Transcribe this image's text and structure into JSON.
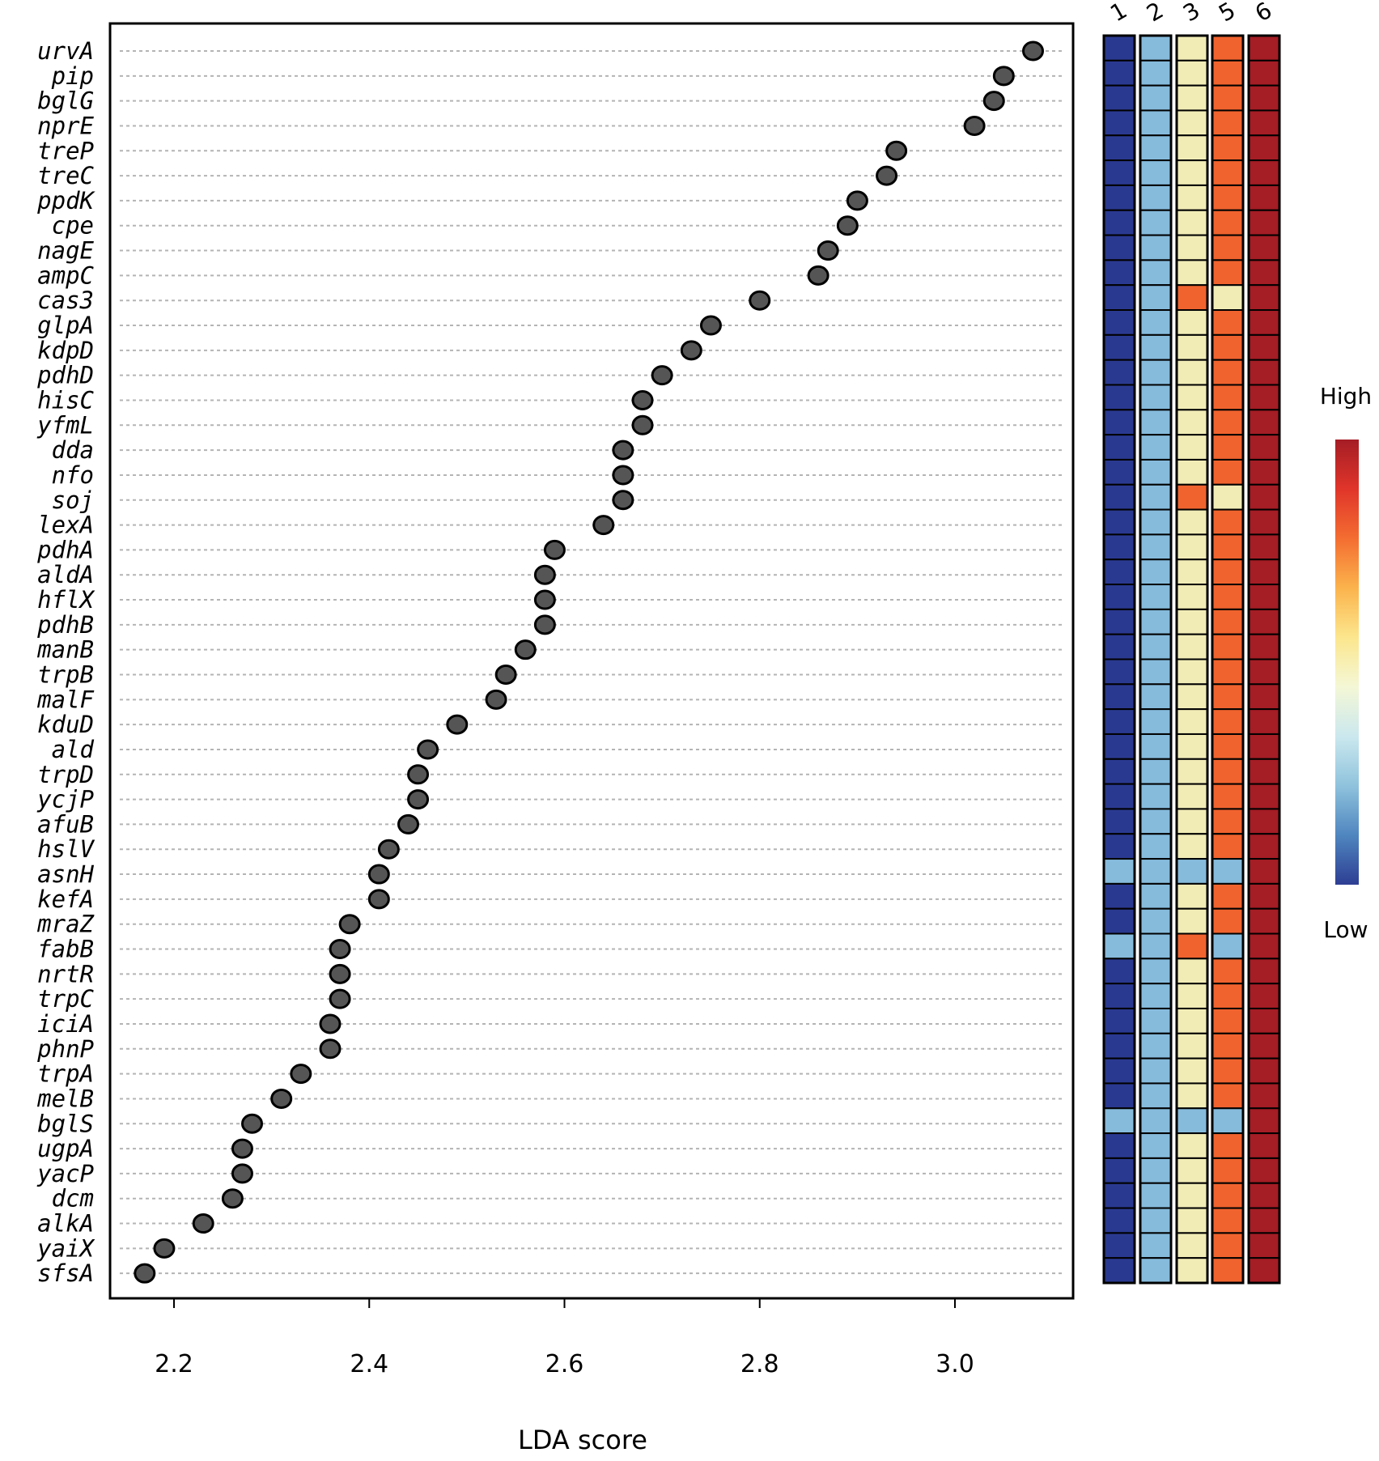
{
  "chart_data": {
    "type": "scatter",
    "xlabel": "LDA score",
    "xlim": [
      2.13,
      3.12
    ],
    "xticks": [
      2.2,
      2.4,
      2.6,
      2.8,
      3.0
    ],
    "xtick_labels": [
      "2.2",
      "2.4",
      "2.6",
      "2.8",
      "3.0"
    ],
    "genes": [
      "urvA",
      "pip",
      "bglG",
      "nprE",
      "treP",
      "treC",
      "ppdK",
      "cpe",
      "nagE",
      "ampC",
      "cas3",
      "glpA",
      "kdpD",
      "pdhD",
      "hisC",
      "yfmL",
      "dda",
      "nfo",
      "soj",
      "lexA",
      "pdhA",
      "aldA",
      "hflX",
      "pdhB",
      "manB",
      "trpB",
      "malF",
      "kduD",
      "ald",
      "trpD",
      "ycjP",
      "afuB",
      "hslV",
      "asnH",
      "kefA",
      "mraZ",
      "fabB",
      "nrtR",
      "trpC",
      "iciA",
      "phnP",
      "trpA",
      "melB",
      "bglS",
      "ugpA",
      "yacP",
      "dcm",
      "alkA",
      "yaiX",
      "sfsA"
    ],
    "lda_scores": [
      3.08,
      3.05,
      3.04,
      3.02,
      2.94,
      2.93,
      2.9,
      2.89,
      2.87,
      2.86,
      2.8,
      2.75,
      2.73,
      2.7,
      2.68,
      2.68,
      2.66,
      2.66,
      2.66,
      2.64,
      2.59,
      2.58,
      2.58,
      2.58,
      2.56,
      2.54,
      2.53,
      2.49,
      2.46,
      2.45,
      2.45,
      2.44,
      2.42,
      2.41,
      2.41,
      2.38,
      2.37,
      2.37,
      2.37,
      2.36,
      2.36,
      2.33,
      2.31,
      2.28,
      2.27,
      2.27,
      2.26,
      2.23,
      2.19,
      2.17
    ],
    "heatmap": {
      "columns": [
        "1",
        "2",
        "3",
        "5",
        "6"
      ],
      "levels": {
        "1": [
          "low",
          "low",
          "low",
          "low",
          "low",
          "low",
          "low",
          "low",
          "low",
          "low",
          "low",
          "low",
          "low",
          "low",
          "low",
          "low",
          "low",
          "low",
          "low",
          "low",
          "low",
          "low",
          "low",
          "low",
          "low",
          "low",
          "low",
          "low",
          "low",
          "low",
          "low",
          "low",
          "low",
          "midlow",
          "low",
          "low",
          "midlow",
          "low",
          "low",
          "low",
          "low",
          "low",
          "low",
          "midlow",
          "low",
          "low",
          "low",
          "low",
          "low",
          "low"
        ],
        "2": [
          "midlow",
          "midlow",
          "midlow",
          "midlow",
          "midlow",
          "midlow",
          "midlow",
          "midlow",
          "midlow",
          "midlow",
          "midlow",
          "midlow",
          "midlow",
          "midlow",
          "midlow",
          "midlow",
          "midlow",
          "midlow",
          "midlow",
          "midlow",
          "midlow",
          "midlow",
          "midlow",
          "midlow",
          "midlow",
          "midlow",
          "midlow",
          "midlow",
          "midlow",
          "midlow",
          "midlow",
          "midlow",
          "midlow",
          "midlow",
          "midlow",
          "midlow",
          "midlow",
          "midlow",
          "midlow",
          "midlow",
          "midlow",
          "midlow",
          "midlow",
          "midlow",
          "midlow",
          "midlow",
          "midlow",
          "midlow",
          "midlow",
          "midlow"
        ],
        "3": [
          "mid",
          "mid",
          "mid",
          "mid",
          "mid",
          "mid",
          "mid",
          "mid",
          "mid",
          "mid",
          "midhigh",
          "mid",
          "mid",
          "mid",
          "mid",
          "mid",
          "mid",
          "mid",
          "midhigh",
          "mid",
          "mid",
          "mid",
          "mid",
          "mid",
          "mid",
          "mid",
          "mid",
          "mid",
          "mid",
          "mid",
          "mid",
          "mid",
          "mid",
          "midlow",
          "mid",
          "mid",
          "midhigh",
          "mid",
          "mid",
          "mid",
          "mid",
          "mid",
          "mid",
          "midlow",
          "mid",
          "mid",
          "mid",
          "mid",
          "mid",
          "mid"
        ],
        "5": [
          "midhigh",
          "midhigh",
          "midhigh",
          "midhigh",
          "midhigh",
          "midhigh",
          "midhigh",
          "midhigh",
          "midhigh",
          "midhigh",
          "mid",
          "midhigh",
          "midhigh",
          "midhigh",
          "midhigh",
          "midhigh",
          "midhigh",
          "midhigh",
          "mid",
          "midhigh",
          "midhigh",
          "midhigh",
          "midhigh",
          "midhigh",
          "midhigh",
          "midhigh",
          "midhigh",
          "midhigh",
          "midhigh",
          "midhigh",
          "midhigh",
          "midhigh",
          "midhigh",
          "midlow",
          "midhigh",
          "midhigh",
          "midlow",
          "midhigh",
          "midhigh",
          "midhigh",
          "midhigh",
          "midhigh",
          "midhigh",
          "midlow",
          "midhigh",
          "midhigh",
          "midhigh",
          "midhigh",
          "midhigh",
          "midhigh"
        ],
        "6": [
          "high",
          "high",
          "high",
          "high",
          "high",
          "high",
          "high",
          "high",
          "high",
          "high",
          "high",
          "high",
          "high",
          "high",
          "high",
          "high",
          "high",
          "high",
          "high",
          "high",
          "high",
          "high",
          "high",
          "high",
          "high",
          "high",
          "high",
          "high",
          "high",
          "high",
          "high",
          "high",
          "high",
          "high",
          "high",
          "high",
          "high",
          "high",
          "high",
          "high",
          "high",
          "high",
          "high",
          "high",
          "high",
          "high",
          "high",
          "high",
          "high",
          "high"
        ]
      },
      "level_colors": {
        "low": "#2a3990",
        "midlow": "#86bbdc",
        "mid": "#f1ecb6",
        "midhigh": "#f0632e",
        "high": "#a51d25"
      }
    },
    "legend": {
      "high_label": "High",
      "low_label": "Low",
      "gradient_colors": [
        "#a51d25",
        "#e0352a",
        "#f46d31",
        "#fbb34c",
        "#fce68d",
        "#f4f7d6",
        "#cbe8ee",
        "#8fc3dd",
        "#4f86bf",
        "#2d3e93"
      ]
    },
    "point_color": "#555555"
  }
}
